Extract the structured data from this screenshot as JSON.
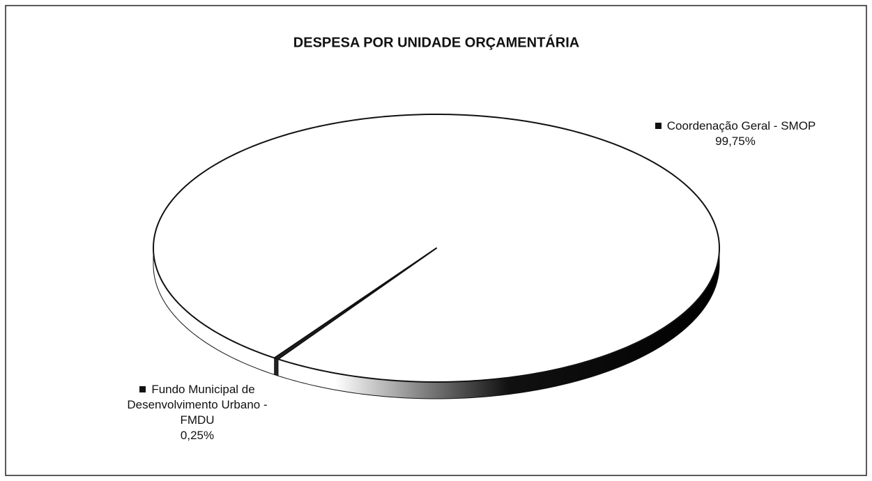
{
  "chart_data": {
    "type": "pie3d",
    "title": "DESPESA POR UNIDADE ORÇAMENTÁRIA",
    "categories": [
      "Fundo Municipal de Desenvolvimento Urbano - FMDU",
      "Coordenação Geral - SMOP"
    ],
    "values": [
      0.25,
      99.75
    ],
    "value_labels": [
      "0,25%",
      "99,75%"
    ],
    "colors": [
      "#222222",
      "#ffffff"
    ]
  }
}
